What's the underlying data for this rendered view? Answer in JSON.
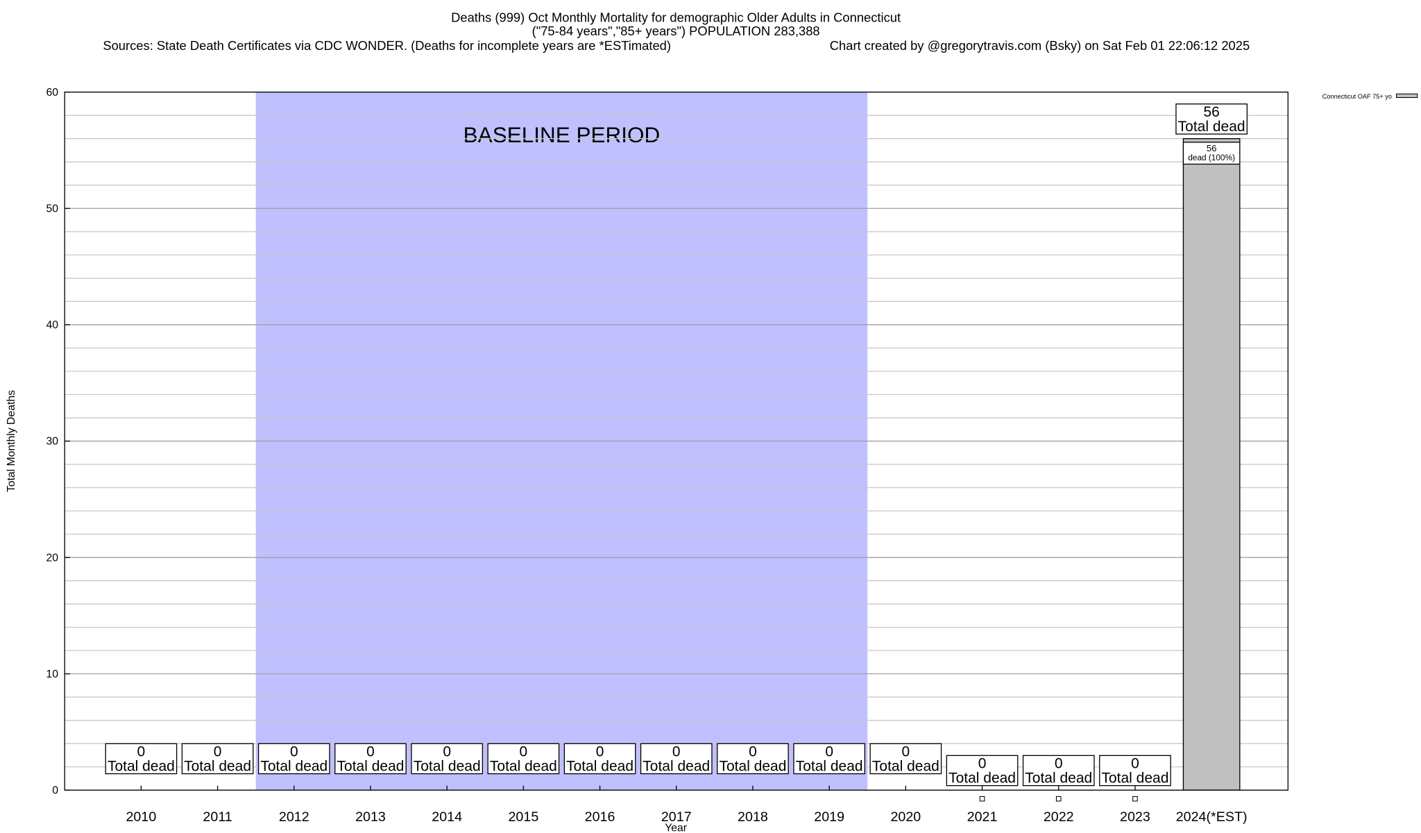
{
  "chart_data": {
    "type": "bar",
    "title": "Deaths (999) Oct Monthly Mortality for demographic Older Adults in Connecticut",
    "subtitle": "(\"75-84 years\",\"85+ years\") POPULATION 283,388",
    "source": "Sources: State Death Certificates via CDC WONDER. (Deaths for incomplete years are *ESTimated)",
    "credit": "Chart created by @gregorytravis.com (Bsky) on Sat Feb 01 22:06:12 2025",
    "x_label": "Year",
    "y_label": "Total Monthly Deaths",
    "categories": [
      "2010",
      "2011",
      "2012",
      "2013",
      "2014",
      "2015",
      "2016",
      "2017",
      "2018",
      "2019",
      "2020",
      "2021",
      "2022",
      "2023",
      "2024(*EST)"
    ],
    "series": [
      {
        "name": "Connecticut OAF 75+ yo",
        "color": "#c0c0c0",
        "values": [
          0,
          0,
          0,
          0,
          0,
          0,
          0,
          0,
          0,
          0,
          0,
          0,
          0,
          0,
          56
        ],
        "segment_label": "dead (100%)"
      }
    ],
    "total_label": "Total dead",
    "shade": {
      "label": "BASELINE PERIOD",
      "from": "2012",
      "to": "2019",
      "color": "#c0c0ff"
    },
    "ylim": [
      0,
      60
    ],
    "yticks": [
      0,
      10,
      20,
      30,
      40,
      50,
      60
    ],
    "minor_yticks": [
      2,
      4,
      6,
      8,
      12,
      14,
      16,
      18,
      22,
      24,
      26,
      28,
      32,
      34,
      36,
      38,
      42,
      44,
      46,
      48,
      52,
      54,
      56,
      58
    ],
    "grid": true,
    "legend": "top-right"
  }
}
